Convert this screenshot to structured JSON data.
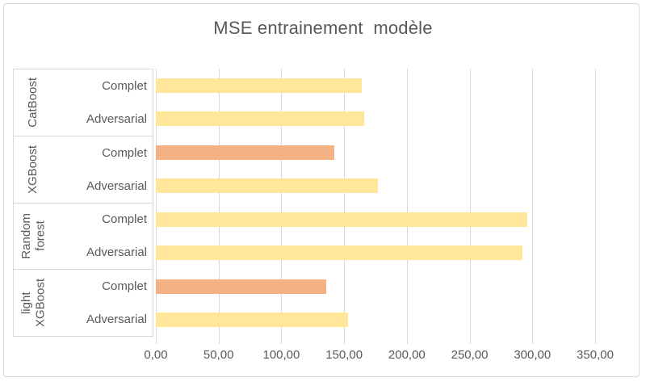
{
  "chart_data": {
    "type": "bar",
    "orientation": "horizontal",
    "title": "MSE entrainement  modèle",
    "xlim": [
      0,
      350
    ],
    "x_tick_interval": 50,
    "x_tick_values": [
      0,
      50,
      100,
      150,
      200,
      250,
      300,
      350
    ],
    "x_tick_labels": [
      "0,00",
      "50,00",
      "100,00",
      "150,00",
      "200,00",
      "250,00",
      "300,00",
      "350,00"
    ],
    "grid": "vertical",
    "legend": "none",
    "number_format": "comma-decimal",
    "colors": {
      "bar_default": "#FFE699",
      "bar_highlight": "#F4B183",
      "gridline": "#D9D9D9",
      "border": "#D9D9D9",
      "text": "#595959"
    },
    "groups": [
      {
        "name": "CatBoost",
        "name_lines": [
          "CatBoost"
        ],
        "bars": [
          {
            "label": "Complet",
            "value": 164,
            "color": "#FFE699"
          },
          {
            "label": "Adversarial",
            "value": 166,
            "color": "#FFE699"
          }
        ]
      },
      {
        "name": "XGBoost",
        "name_lines": [
          "XGBoost"
        ],
        "bars": [
          {
            "label": "Complet",
            "value": 142,
            "color": "#F4B183"
          },
          {
            "label": "Adversarial",
            "value": 177,
            "color": "#FFE699"
          }
        ]
      },
      {
        "name": "Random forest",
        "name_lines": [
          "Random",
          "forest"
        ],
        "bars": [
          {
            "label": "Complet",
            "value": 296,
            "color": "#FFE699"
          },
          {
            "label": "Adversarial",
            "value": 292,
            "color": "#FFE699"
          }
        ]
      },
      {
        "name": "light XGBoost",
        "name_lines": [
          "light",
          "XGBoost"
        ],
        "bars": [
          {
            "label": "Complet",
            "value": 136,
            "color": "#F4B183"
          },
          {
            "label": "Adversarial",
            "value": 153,
            "color": "#FFE699"
          }
        ]
      }
    ]
  }
}
